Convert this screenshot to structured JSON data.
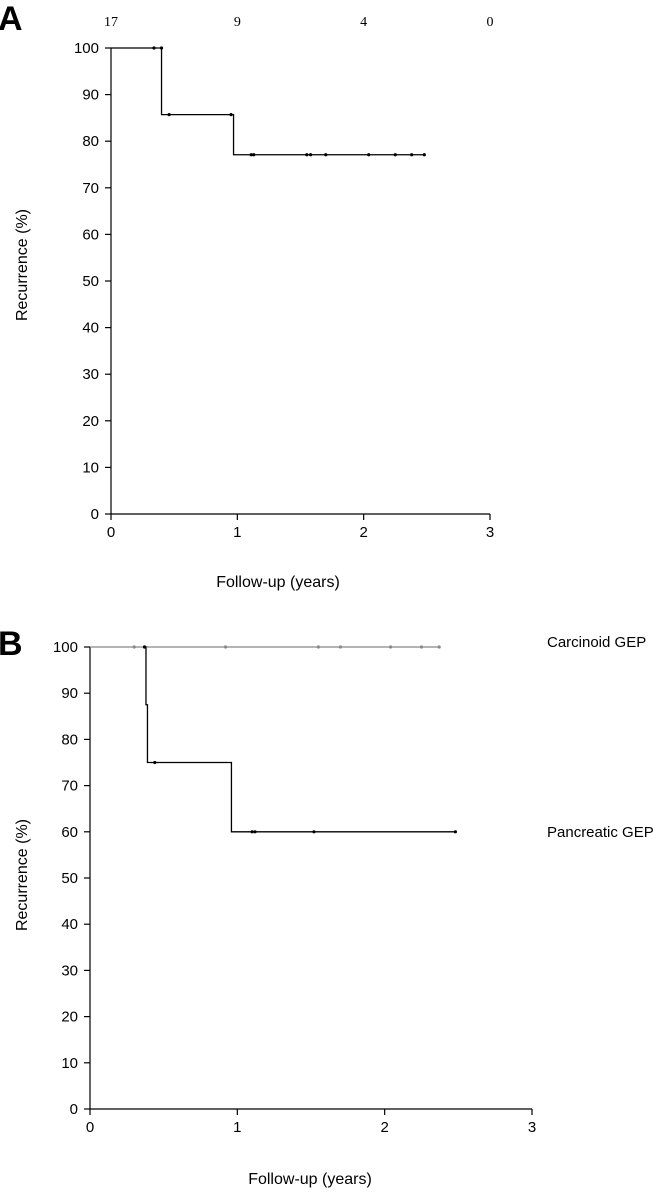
{
  "chart_data": [
    {
      "type": "line",
      "panel_label": "A",
      "xlabel": "Follow-up (years)",
      "ylabel": "Recurrence (%)",
      "xlim": [
        0,
        3
      ],
      "ylim": [
        0,
        100
      ],
      "xticks": [
        "0",
        "1",
        "2",
        "3"
      ],
      "yticks": [
        "0",
        "10",
        "20",
        "30",
        "40",
        "50",
        "60",
        "70",
        "80",
        "90",
        "100"
      ],
      "number_at_risk": [
        {
          "x": 0,
          "label": "17"
        },
        {
          "x": 1,
          "label": "9"
        },
        {
          "x": 2,
          "label": "4"
        },
        {
          "x": 3,
          "label": "0"
        }
      ],
      "series": [
        {
          "color": "#000000",
          "steps": [
            [
              0,
              100
            ],
            [
              0.4,
              85.7
            ],
            [
              0.97,
              77.1
            ],
            [
              2.48,
              77.1
            ]
          ],
          "censored": [
            [
              0.34,
              100
            ],
            [
              0.4,
              100
            ],
            [
              0.46,
              85.7
            ],
            [
              0.95,
              85.7
            ],
            [
              1.11,
              77.1
            ],
            [
              1.13,
              77.1
            ],
            [
              1.55,
              77.1
            ],
            [
              1.58,
              77.1
            ],
            [
              1.7,
              77.1
            ],
            [
              2.04,
              77.1
            ],
            [
              2.25,
              77.1
            ],
            [
              2.38,
              77.1
            ],
            [
              2.48,
              77.1
            ]
          ]
        }
      ]
    },
    {
      "type": "line",
      "panel_label": "B",
      "xlabel": "Follow-up (years)",
      "ylabel": "Recurrence (%)",
      "xlim": [
        0,
        3
      ],
      "ylim": [
        0,
        100
      ],
      "xticks": [
        "0",
        "1",
        "2",
        "3"
      ],
      "yticks": [
        "0",
        "10",
        "20",
        "30",
        "40",
        "50",
        "60",
        "70",
        "80",
        "90",
        "100"
      ],
      "series": [
        {
          "name": "Carcinoid GEP",
          "color": "#888888",
          "steps": [
            [
              0,
              100
            ],
            [
              2.37,
              100
            ]
          ],
          "censored": [
            [
              0.3,
              100
            ],
            [
              0.37,
              100
            ],
            [
              0.92,
              100
            ],
            [
              1.55,
              100
            ],
            [
              1.7,
              100
            ],
            [
              2.04,
              100
            ],
            [
              2.25,
              100
            ],
            [
              2.37,
              100
            ]
          ]
        },
        {
          "name": "Pancreatic GEP",
          "color": "#000000",
          "steps": [
            [
              0.37,
              100
            ],
            [
              0.38,
              87.5
            ],
            [
              0.39,
              75
            ],
            [
              0.96,
              60
            ],
            [
              2.48,
              60
            ]
          ],
          "censored": [
            [
              0.37,
              100
            ],
            [
              0.44,
              75
            ],
            [
              1.1,
              60
            ],
            [
              1.12,
              60
            ],
            [
              1.52,
              60
            ],
            [
              2.48,
              60
            ]
          ]
        }
      ]
    }
  ]
}
